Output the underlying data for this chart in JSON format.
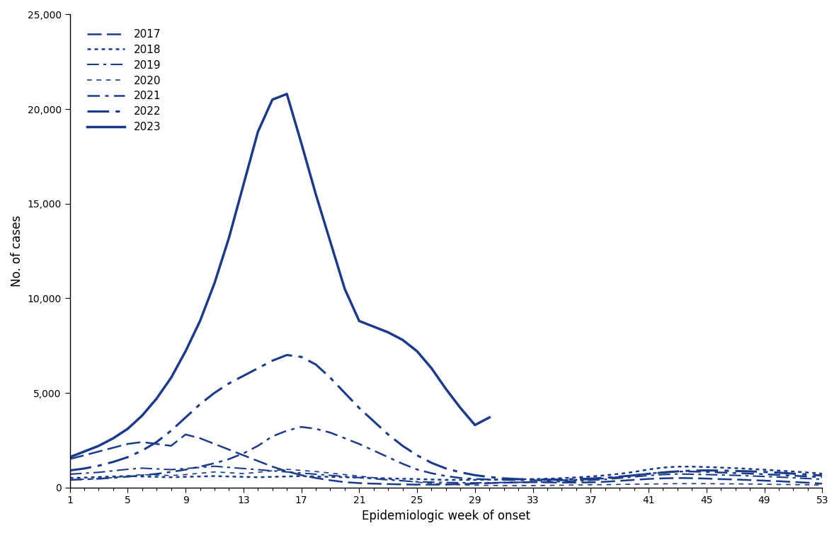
{
  "color": "#1a3a8a",
  "ylabel": "No. of cases",
  "xlabel": "Epidemiologic week of onset",
  "ylim": [
    0,
    25000
  ],
  "yticks": [
    0,
    5000,
    10000,
    15000,
    20000,
    25000
  ],
  "xticks": [
    1,
    5,
    9,
    13,
    17,
    21,
    25,
    29,
    33,
    37,
    41,
    45,
    49,
    53
  ],
  "series": {
    "2017": {
      "linestyle_key": "long_dash",
      "linewidth": 1.8,
      "values": [
        1500,
        1700,
        1900,
        2100,
        2300,
        2400,
        2300,
        2200,
        2800,
        2600,
        2300,
        2000,
        1700,
        1400,
        1100,
        850,
        650,
        500,
        380,
        280,
        230,
        200,
        180,
        160,
        150,
        150,
        150,
        180,
        200,
        230,
        250,
        270,
        280,
        270,
        260,
        260,
        270,
        300,
        350,
        400,
        450,
        480,
        500,
        490,
        470,
        440,
        420,
        390,
        360,
        330,
        290,
        250,
        200
      ]
    },
    "2018": {
      "linestyle_key": "dotted",
      "linewidth": 1.8,
      "values": [
        500,
        520,
        550,
        580,
        600,
        580,
        560,
        540,
        560,
        580,
        600,
        580,
        560,
        540,
        560,
        580,
        600,
        580,
        560,
        540,
        520,
        500,
        480,
        460,
        440,
        420,
        400,
        400,
        400,
        410,
        420,
        430,
        440,
        460,
        490,
        530,
        580,
        640,
        720,
        820,
        950,
        1050,
        1100,
        1100,
        1080,
        1050,
        1020,
        980,
        940,
        890,
        840,
        790,
        730
      ]
    },
    "2019": {
      "linestyle_key": "long_dash_dot",
      "linewidth": 1.5,
      "values": [
        700,
        750,
        800,
        880,
        960,
        1020,
        980,
        940,
        1000,
        1060,
        1120,
        1060,
        1000,
        940,
        880,
        820,
        760,
        700,
        640,
        580,
        520,
        460,
        400,
        350,
        300,
        280,
        260,
        250,
        240,
        250,
        260,
        270,
        280,
        290,
        310,
        340,
        380,
        430,
        490,
        560,
        630,
        680,
        710,
        700,
        680,
        660,
        640,
        610,
        580,
        550,
        510,
        470,
        430
      ]
    },
    "2020": {
      "linestyle_key": "short_dash",
      "linewidth": 1.2,
      "values": [
        400,
        430,
        460,
        520,
        600,
        680,
        660,
        630,
        680,
        750,
        820,
        780,
        730,
        800,
        880,
        960,
        900,
        840,
        760,
        680,
        600,
        520,
        440,
        360,
        280,
        220,
        170,
        140,
        120,
        110,
        100,
        100,
        100,
        110,
        120,
        130,
        140,
        150,
        160,
        170,
        180,
        190,
        200,
        200,
        200,
        190,
        190,
        180,
        170,
        160,
        150,
        140,
        130
      ]
    },
    "2021": {
      "linestyle_key": "dash_dot",
      "linewidth": 1.8,
      "values": [
        400,
        430,
        460,
        510,
        570,
        640,
        720,
        820,
        940,
        1100,
        1280,
        1500,
        1800,
        2200,
        2700,
        3000,
        3200,
        3100,
        2900,
        2600,
        2300,
        1950,
        1600,
        1250,
        950,
        750,
        600,
        500,
        450,
        420,
        400,
        390,
        380,
        370,
        380,
        400,
        430,
        480,
        550,
        640,
        730,
        800,
        840,
        840,
        820,
        790,
        760,
        730,
        700,
        660,
        620,
        580,
        540
      ]
    },
    "2022": {
      "linestyle_key": "heavy_dash_dot",
      "linewidth": 2.2,
      "values": [
        900,
        1000,
        1150,
        1350,
        1600,
        1950,
        2400,
        3000,
        3700,
        4400,
        5000,
        5500,
        5900,
        6300,
        6700,
        7000,
        6900,
        6500,
        5800,
        5000,
        4200,
        3500,
        2800,
        2200,
        1700,
        1300,
        1000,
        800,
        650,
        550,
        480,
        440,
        420,
        410,
        420,
        440,
        470,
        510,
        570,
        640,
        720,
        790,
        850,
        890,
        900,
        890,
        870,
        850,
        820,
        780,
        730,
        680,
        630
      ]
    },
    "2023": {
      "linestyle_key": "solid",
      "linewidth": 2.5,
      "values": [
        1600,
        1900,
        2200,
        2600,
        3100,
        3800,
        4700,
        5800,
        7200,
        8800,
        10800,
        13200,
        16000,
        18800,
        20500,
        20800,
        18200,
        15500,
        13000,
        10500,
        8800,
        8500,
        8200,
        7800,
        7200,
        6300,
        5200,
        4200,
        3300,
        3700,
        null,
        null,
        null,
        null,
        null,
        null,
        null,
        null,
        null,
        null,
        null,
        null,
        null,
        null,
        null,
        null,
        null,
        null,
        null,
        null,
        null,
        null,
        null
      ]
    }
  }
}
